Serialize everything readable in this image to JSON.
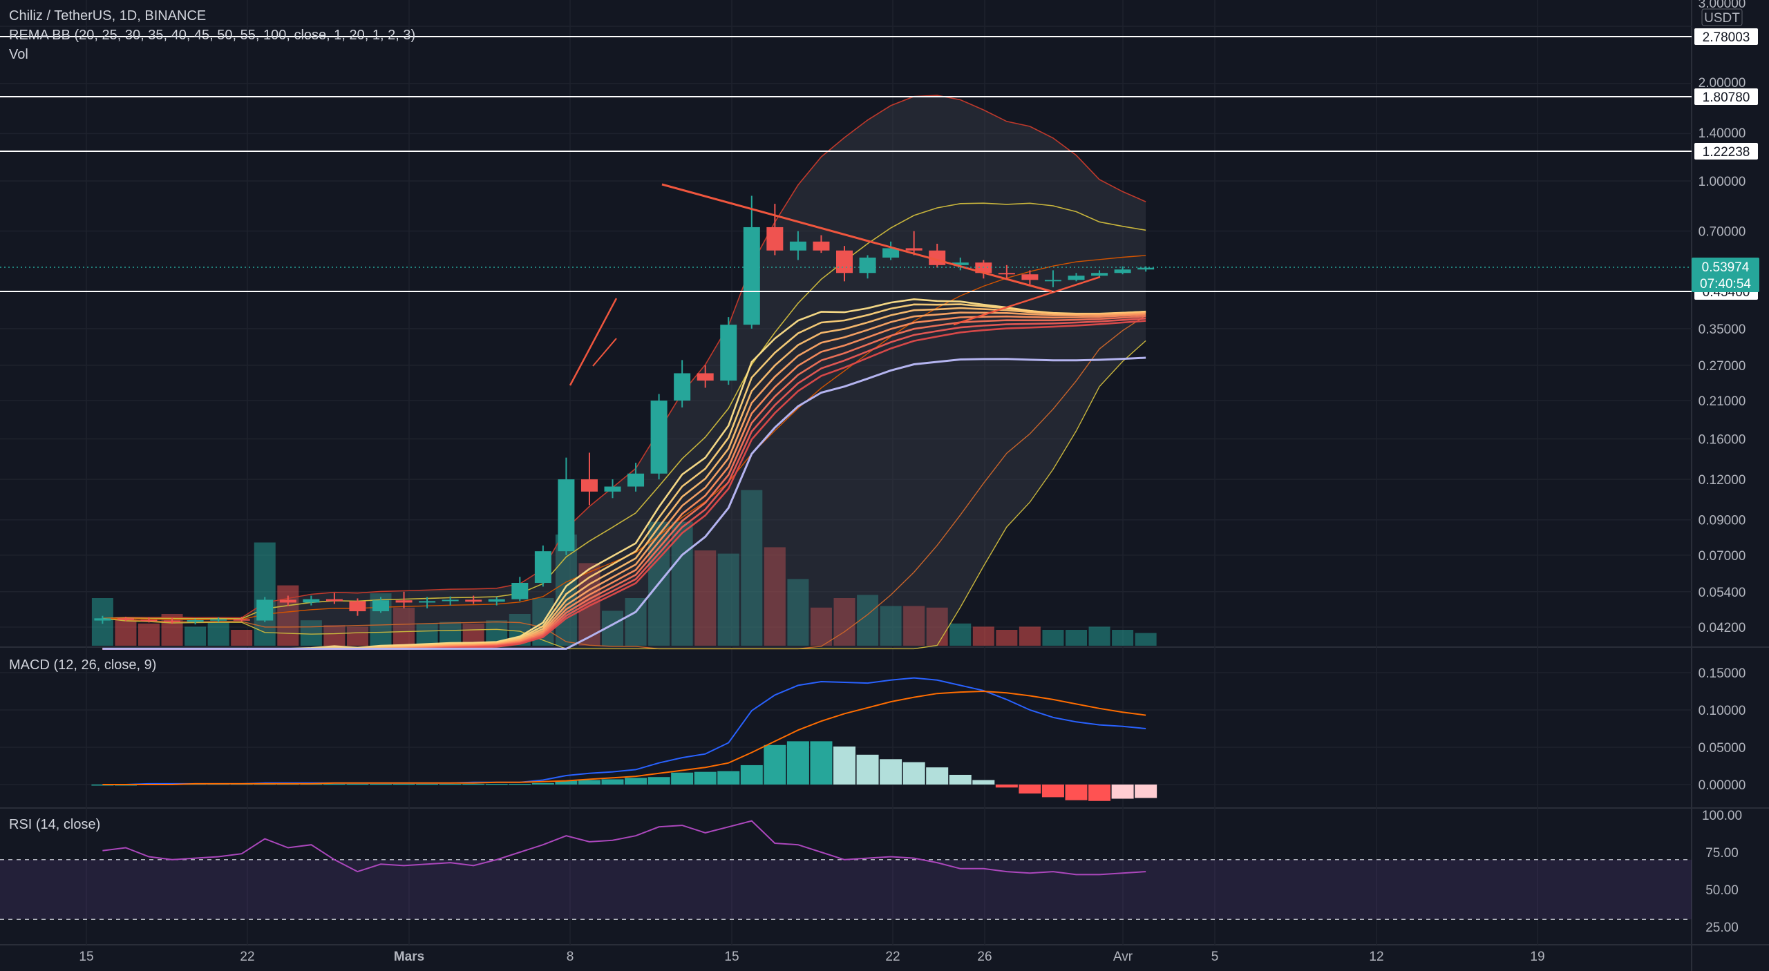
{
  "header": {
    "symbol_line": "Chiliz / TetherUS, 1D, BINANCE",
    "indicator_line": "REMA BB (20, 25, 30, 35, 40, 45, 50, 55, 100, close, 1, 20, 1, 2, 3)",
    "volume_label": "Vol"
  },
  "macd": {
    "title": "MACD (12, 26, close, 9)"
  },
  "rsi": {
    "title": "RSI (14, close)"
  },
  "currency": "USDT",
  "price_axis_ticks": [
    "3.00000",
    "2.00000",
    "1.40000",
    "1.00000",
    "0.70000",
    "0.35000",
    "0.27000",
    "0.21000",
    "0.16000",
    "0.12000",
    "0.09000",
    "0.07000",
    "0.05400",
    "0.04200"
  ],
  "macd_axis_ticks": [
    "0.15000",
    "0.10000",
    "0.05000",
    "0.00000"
  ],
  "rsi_axis_ticks": [
    "100.00",
    "75.00",
    "50.00",
    "25.00"
  ],
  "horizontal_levels": [
    "2.78003",
    "1.80780",
    "1.22238",
    "0.45400"
  ],
  "last_price": {
    "value": "0.53974",
    "countdown": "07:40:54"
  },
  "time_axis_labels": [
    "15",
    "22",
    "Mars",
    "8",
    "15",
    "22",
    "26",
    "Avr",
    "5",
    "12",
    "19"
  ],
  "colors": {
    "background": "#131722",
    "up": "#26a69a",
    "down": "#ef5350",
    "macd_line": "#2962ff",
    "signal_line": "#ff6d00",
    "rsi_line": "#ab47bc",
    "ema100": "#b4b4f0"
  },
  "chart_data": {
    "type": "candlestick",
    "candles": [
      {
        "o": 0.044,
        "h": 0.0455,
        "l": 0.043,
        "c": 0.0447
      },
      {
        "o": 0.0447,
        "h": 0.0452,
        "l": 0.0438,
        "c": 0.0442
      },
      {
        "o": 0.0442,
        "h": 0.045,
        "l": 0.0434,
        "c": 0.044
      },
      {
        "o": 0.044,
        "h": 0.0448,
        "l": 0.043,
        "c": 0.0436
      },
      {
        "o": 0.0436,
        "h": 0.0445,
        "l": 0.0428,
        "c": 0.0441
      },
      {
        "o": 0.0441,
        "h": 0.045,
        "l": 0.0435,
        "c": 0.0444
      },
      {
        "o": 0.0444,
        "h": 0.0452,
        "l": 0.0437,
        "c": 0.044
      },
      {
        "o": 0.044,
        "h": 0.052,
        "l": 0.0435,
        "c": 0.051
      },
      {
        "o": 0.051,
        "h": 0.0525,
        "l": 0.0488,
        "c": 0.05
      },
      {
        "o": 0.05,
        "h": 0.0525,
        "l": 0.049,
        "c": 0.0512
      },
      {
        "o": 0.0512,
        "h": 0.0535,
        "l": 0.0495,
        "c": 0.0505
      },
      {
        "o": 0.0505,
        "h": 0.0515,
        "l": 0.0455,
        "c": 0.047
      },
      {
        "o": 0.047,
        "h": 0.052,
        "l": 0.0465,
        "c": 0.0508
      },
      {
        "o": 0.0508,
        "h": 0.054,
        "l": 0.048,
        "c": 0.05
      },
      {
        "o": 0.05,
        "h": 0.052,
        "l": 0.048,
        "c": 0.0505
      },
      {
        "o": 0.0505,
        "h": 0.0522,
        "l": 0.049,
        "c": 0.051
      },
      {
        "o": 0.051,
        "h": 0.0525,
        "l": 0.0495,
        "c": 0.0503
      },
      {
        "o": 0.0503,
        "h": 0.052,
        "l": 0.049,
        "c": 0.0512
      },
      {
        "o": 0.0512,
        "h": 0.06,
        "l": 0.0505,
        "c": 0.0575
      },
      {
        "o": 0.0575,
        "h": 0.075,
        "l": 0.056,
        "c": 0.072
      },
      {
        "o": 0.072,
        "h": 0.14,
        "l": 0.07,
        "c": 0.12
      },
      {
        "o": 0.12,
        "h": 0.145,
        "l": 0.1,
        "c": 0.11
      },
      {
        "o": 0.11,
        "h": 0.12,
        "l": 0.105,
        "c": 0.114
      },
      {
        "o": 0.114,
        "h": 0.135,
        "l": 0.11,
        "c": 0.125
      },
      {
        "o": 0.125,
        "h": 0.22,
        "l": 0.12,
        "c": 0.21
      },
      {
        "o": 0.21,
        "h": 0.28,
        "l": 0.2,
        "c": 0.255
      },
      {
        "o": 0.255,
        "h": 0.27,
        "l": 0.23,
        "c": 0.242
      },
      {
        "o": 0.242,
        "h": 0.38,
        "l": 0.235,
        "c": 0.36
      },
      {
        "o": 0.36,
        "h": 0.9,
        "l": 0.35,
        "c": 0.72
      },
      {
        "o": 0.72,
        "h": 0.85,
        "l": 0.59,
        "c": 0.61
      },
      {
        "o": 0.61,
        "h": 0.7,
        "l": 0.57,
        "c": 0.65
      },
      {
        "o": 0.65,
        "h": 0.68,
        "l": 0.6,
        "c": 0.61
      },
      {
        "o": 0.61,
        "h": 0.63,
        "l": 0.49,
        "c": 0.52
      },
      {
        "o": 0.52,
        "h": 0.59,
        "l": 0.5,
        "c": 0.58
      },
      {
        "o": 0.58,
        "h": 0.65,
        "l": 0.57,
        "c": 0.62
      },
      {
        "o": 0.62,
        "h": 0.7,
        "l": 0.59,
        "c": 0.61
      },
      {
        "o": 0.61,
        "h": 0.64,
        "l": 0.54,
        "c": 0.55
      },
      {
        "o": 0.55,
        "h": 0.58,
        "l": 0.53,
        "c": 0.56
      },
      {
        "o": 0.56,
        "h": 0.57,
        "l": 0.5,
        "c": 0.52
      },
      {
        "o": 0.52,
        "h": 0.55,
        "l": 0.5,
        "c": 0.515
      },
      {
        "o": 0.515,
        "h": 0.53,
        "l": 0.48,
        "c": 0.495
      },
      {
        "o": 0.495,
        "h": 0.53,
        "l": 0.47,
        "c": 0.495
      },
      {
        "o": 0.495,
        "h": 0.52,
        "l": 0.49,
        "c": 0.51
      },
      {
        "o": 0.51,
        "h": 0.53,
        "l": 0.505,
        "c": 0.52
      },
      {
        "o": 0.52,
        "h": 0.545,
        "l": 0.515,
        "c": 0.533
      },
      {
        "o": 0.533,
        "h": 0.545,
        "l": 0.525,
        "c": 0.5397
      }
    ],
    "volume": [
      0.3,
      0.18,
      0.14,
      0.2,
      0.12,
      0.15,
      0.1,
      0.65,
      0.38,
      0.16,
      0.13,
      0.12,
      0.33,
      0.24,
      0.14,
      0.15,
      0.14,
      0.16,
      0.2,
      0.3,
      0.7,
      0.52,
      0.22,
      0.3,
      0.78,
      0.78,
      0.6,
      0.58,
      0.98,
      0.62,
      0.42,
      0.24,
      0.3,
      0.32,
      0.25,
      0.25,
      0.24,
      0.14,
      0.12,
      0.1,
      0.12,
      0.1,
      0.1,
      0.12,
      0.1,
      0.08
    ],
    "macd_line": [
      0.0,
      0.0,
      0.001,
      0.001,
      0.001,
      0.001,
      0.001,
      0.002,
      0.002,
      0.002,
      0.002,
      0.002,
      0.002,
      0.002,
      0.002,
      0.002,
      0.003,
      0.003,
      0.003,
      0.006,
      0.012,
      0.015,
      0.017,
      0.02,
      0.029,
      0.036,
      0.041,
      0.056,
      0.099,
      0.12,
      0.133,
      0.138,
      0.137,
      0.136,
      0.14,
      0.143,
      0.14,
      0.133,
      0.126,
      0.114,
      0.1,
      0.09,
      0.084,
      0.08,
      0.078,
      0.075
    ],
    "signal_line": [
      0.0,
      0.0,
      0.0,
      0.0,
      0.001,
      0.001,
      0.001,
      0.001,
      0.001,
      0.001,
      0.002,
      0.002,
      0.002,
      0.002,
      0.002,
      0.002,
      0.002,
      0.003,
      0.003,
      0.004,
      0.005,
      0.007,
      0.009,
      0.011,
      0.015,
      0.019,
      0.023,
      0.029,
      0.043,
      0.058,
      0.073,
      0.085,
      0.095,
      0.103,
      0.111,
      0.117,
      0.122,
      0.124,
      0.125,
      0.123,
      0.119,
      0.114,
      0.108,
      0.102,
      0.097,
      0.093
    ],
    "macd_hist": [
      0.0,
      0.0,
      0.001,
      0.001,
      0.001,
      0.001,
      0.001,
      0.001,
      0.001,
      0.001,
      0.001,
      0.001,
      0.001,
      0.001,
      0.001,
      0.001,
      0.001,
      0.001,
      0.001,
      0.002,
      0.005,
      0.006,
      0.007,
      0.009,
      0.01,
      0.016,
      0.017,
      0.018,
      0.026,
      0.053,
      0.058,
      0.058,
      0.051,
      0.04,
      0.034,
      0.03,
      0.023,
      0.013,
      0.006,
      -0.004,
      -0.012,
      -0.017,
      -0.021,
      -0.022,
      -0.019,
      -0.018
    ],
    "rsi": [
      76,
      78,
      72,
      70,
      71,
      72,
      74,
      84,
      78,
      80,
      70,
      62,
      67,
      66,
      67,
      68,
      66,
      70,
      75,
      80,
      86,
      82,
      83,
      86,
      92,
      93,
      88,
      92,
      96,
      81,
      80,
      75,
      70,
      71,
      72,
      71,
      68,
      64,
      64,
      62,
      61,
      62,
      60,
      60,
      61,
      62
    ],
    "rsi_levels": [
      70,
      30
    ],
    "price_ylim": [
      0.04,
      3.0
    ],
    "macd_ylim": [
      -0.02,
      0.16
    ],
    "rsi_ylim": [
      20,
      100
    ]
  }
}
